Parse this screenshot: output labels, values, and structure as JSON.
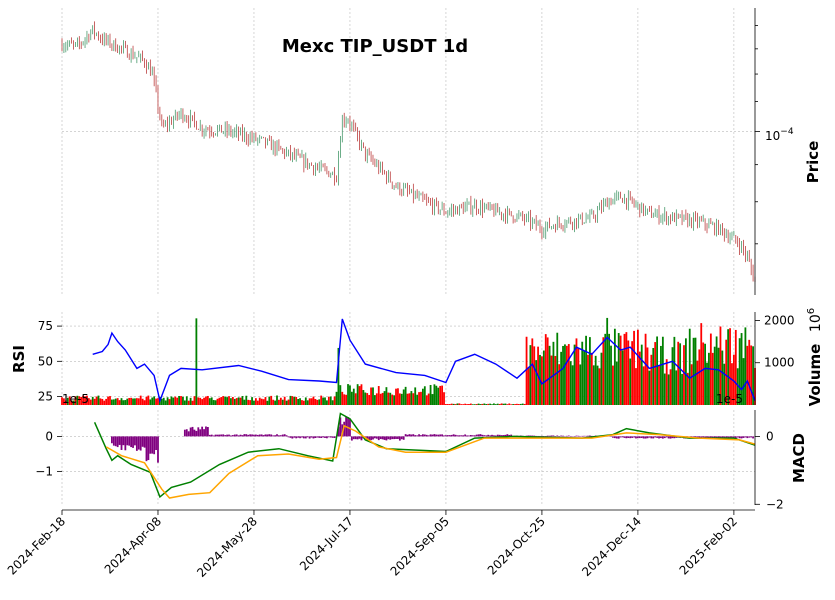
{
  "chart_data": {
    "type": "candlestick",
    "title": "Mexc TIP_USDT 1d",
    "x_tick_labels": [
      "2024-Feb-18",
      "2024-Apr-08",
      "2024-May-28",
      "2024-Jul-17",
      "2024-Sep-05",
      "2024-Oct-25",
      "2024-Dec-14",
      "2025-Feb-02"
    ],
    "x_range": [
      "2024-Feb-18",
      "2025-Feb-13"
    ],
    "colors": {
      "up": "#2e8b57",
      "down": "#b22222",
      "rsi": "#0000ff",
      "vol_up": "#008000",
      "vol_down": "#ff0000",
      "macd": "#008000",
      "signal": "#ffa500",
      "hist": "#800080"
    },
    "price_panel": {
      "ylabel": "Price",
      "scale": "log",
      "ylim": [
        5.95e-05,
        0.000148
      ],
      "tick_label": "10^-4",
      "tick_value": 0.0001,
      "close_series": [
        {
          "date": "2024-Feb-18",
          "value": 0.000132
        },
        {
          "date": "2024-Feb-26",
          "value": 0.000131
        },
        {
          "date": "2024-Mar-05",
          "value": 0.000138
        },
        {
          "date": "2024-Mar-10",
          "value": 0.000134
        },
        {
          "date": "2024-Mar-20",
          "value": 0.00013
        },
        {
          "date": "2024-Apr-01",
          "value": 0.000125
        },
        {
          "date": "2024-Apr-05",
          "value": 0.00012
        },
        {
          "date": "2024-Apr-10",
          "value": 0.000101
        },
        {
          "date": "2024-Apr-20",
          "value": 0.000106
        },
        {
          "date": "2024-May-01",
          "value": 0.000101
        },
        {
          "date": "2024-May-15",
          "value": 0.0001
        },
        {
          "date": "2024-Jun-01",
          "value": 9.7e-05
        },
        {
          "date": "2024-Jun-15",
          "value": 9.3e-05
        },
        {
          "date": "2024-Jun-30",
          "value": 8.9e-05
        },
        {
          "date": "2024-Jul-10",
          "value": 8.7e-05
        },
        {
          "date": "2024-Jul-13",
          "value": 0.000104
        },
        {
          "date": "2024-Jul-16",
          "value": 0.000104
        },
        {
          "date": "2024-Jul-25",
          "value": 9.3e-05
        },
        {
          "date": "2024-Aug-10",
          "value": 8.4e-05
        },
        {
          "date": "2024-Aug-25",
          "value": 8e-05
        },
        {
          "date": "2024-Sep-05",
          "value": 7.75e-05
        },
        {
          "date": "2024-Sep-20",
          "value": 7.9e-05
        },
        {
          "date": "2024-Oct-01",
          "value": 7.75e-05
        },
        {
          "date": "2024-Oct-15",
          "value": 7.6e-05
        },
        {
          "date": "2024-Oct-25",
          "value": 7.35e-05
        },
        {
          "date": "2024-Nov-05",
          "value": 7.5e-05
        },
        {
          "date": "2024-Nov-20",
          "value": 7.6e-05
        },
        {
          "date": "2024-Nov-28",
          "value": 8e-05
        },
        {
          "date": "2024-Dec-05",
          "value": 8.12e-05
        },
        {
          "date": "2024-Dec-10",
          "value": 8e-05
        },
        {
          "date": "2024-Dec-20",
          "value": 7.7e-05
        },
        {
          "date": "2025-Jan-01",
          "value": 7.6e-05
        },
        {
          "date": "2025-Jan-15",
          "value": 7.5e-05
        },
        {
          "date": "2025-Jan-25",
          "value": 7.35e-05
        },
        {
          "date": "2025-Feb-05",
          "value": 7e-05
        },
        {
          "date": "2025-Feb-09",
          "value": 6.7e-05
        },
        {
          "date": "2025-Feb-13",
          "value": 6.2e-05
        }
      ]
    },
    "rsi_panel": {
      "ylabel": "RSI",
      "ylim": [
        19,
        85
      ],
      "yticks": [
        25,
        50,
        75
      ],
      "series": [
        {
          "date": "2024-Mar-05",
          "value": 55
        },
        {
          "date": "2024-Mar-10",
          "value": 57
        },
        {
          "date": "2024-Mar-13",
          "value": 62
        },
        {
          "date": "2024-Mar-15",
          "value": 70
        },
        {
          "date": "2024-Mar-18",
          "value": 64
        },
        {
          "date": "2024-Mar-22",
          "value": 58
        },
        {
          "date": "2024-Mar-28",
          "value": 45
        },
        {
          "date": "2024-Apr-01",
          "value": 48
        },
        {
          "date": "2024-Apr-06",
          "value": 40
        },
        {
          "date": "2024-Apr-09",
          "value": 22
        },
        {
          "date": "2024-Apr-14",
          "value": 40
        },
        {
          "date": "2024-Apr-20",
          "value": 45
        },
        {
          "date": "2024-May-01",
          "value": 44
        },
        {
          "date": "2024-May-20",
          "value": 47
        },
        {
          "date": "2024-Jun-01",
          "value": 43
        },
        {
          "date": "2024-Jun-15",
          "value": 37
        },
        {
          "date": "2024-Jul-01",
          "value": 36
        },
        {
          "date": "2024-Jul-10",
          "value": 35
        },
        {
          "date": "2024-Jul-13",
          "value": 80
        },
        {
          "date": "2024-Jul-17",
          "value": 65
        },
        {
          "date": "2024-Jul-25",
          "value": 48
        },
        {
          "date": "2024-Aug-10",
          "value": 42
        },
        {
          "date": "2024-Aug-25",
          "value": 40
        },
        {
          "date": "2024-Sep-05",
          "value": 35
        },
        {
          "date": "2024-Sep-10",
          "value": 50
        },
        {
          "date": "2024-Sep-20",
          "value": 55
        },
        {
          "date": "2024-Oct-01",
          "value": 48
        },
        {
          "date": "2024-Oct-12",
          "value": 38
        },
        {
          "date": "2024-Oct-20",
          "value": 48
        },
        {
          "date": "2024-Oct-25",
          "value": 34
        },
        {
          "date": "2024-Nov-05",
          "value": 45
        },
        {
          "date": "2024-Nov-12",
          "value": 60
        },
        {
          "date": "2024-Nov-20",
          "value": 55
        },
        {
          "date": "2024-Nov-28",
          "value": 67
        },
        {
          "date": "2024-Dec-05",
          "value": 58
        },
        {
          "date": "2024-Dec-10",
          "value": 60
        },
        {
          "date": "2024-Dec-20",
          "value": 45
        },
        {
          "date": "2025-Jan-01",
          "value": 50
        },
        {
          "date": "2025-Jan-10",
          "value": 38
        },
        {
          "date": "2025-Jan-18",
          "value": 45
        },
        {
          "date": "2025-Jan-25",
          "value": 44
        },
        {
          "date": "2025-Feb-02",
          "value": 36
        },
        {
          "date": "2025-Feb-06",
          "value": 30
        },
        {
          "date": "2025-Feb-09",
          "value": 36
        },
        {
          "date": "2025-Feb-13",
          "value": 22
        }
      ]
    },
    "volume_panel": {
      "ylabel": "Volume",
      "multiplier_label": "10^6",
      "ylim": [
        0,
        2200
      ],
      "yticks": [
        1000,
        2000
      ],
      "levels": [
        {
          "from": "2024-Feb-18",
          "to": "2024-Jul-10",
          "value": 180
        },
        {
          "from": "2024-Jul-10",
          "to": "2024-Sep-05",
          "value": 400
        },
        {
          "from": "2024-Sep-05",
          "to": "2024-Oct-17",
          "value": 30
        },
        {
          "from": "2024-Oct-17",
          "to": "2024-Nov-28",
          "value": 1430
        },
        {
          "from": "2024-Nov-28",
          "to": "2024-Dec-20",
          "value": 1460
        },
        {
          "from": "2024-Dec-20",
          "to": "2025-Jan-10",
          "value": 1300
        },
        {
          "from": "2025-Jan-10",
          "to": "2025-Feb-13",
          "value": 1580
        }
      ],
      "spikes": [
        {
          "date": "2024-Apr-28",
          "value": 2050
        },
        {
          "date": "2024-Jul-11",
          "value": 1350
        },
        {
          "date": "2024-Nov-28",
          "value": 2060
        }
      ]
    },
    "macd_panel": {
      "ylabel": "MACD",
      "multiplier_label": "1e-5",
      "left_multiplier_label": "1e-5",
      "ylim": [
        -1.95,
        0.75
      ],
      "left_yticks": [
        -1,
        0
      ],
      "right_yticks": [
        -2,
        0
      ],
      "macd": [
        {
          "date": "2024-Mar-06",
          "value": 0.4
        },
        {
          "date": "2024-Mar-12",
          "value": -0.35
        },
        {
          "date": "2024-Mar-15",
          "value": -0.68
        },
        {
          "date": "2024-Mar-18",
          "value": -0.55
        },
        {
          "date": "2024-Mar-25",
          "value": -0.8
        },
        {
          "date": "2024-Apr-04",
          "value": -1.02
        },
        {
          "date": "2024-Apr-09",
          "value": -1.72
        },
        {
          "date": "2024-Apr-15",
          "value": -1.45
        },
        {
          "date": "2024-Apr-25",
          "value": -1.3
        },
        {
          "date": "2024-May-10",
          "value": -0.8
        },
        {
          "date": "2024-May-25",
          "value": -0.45
        },
        {
          "date": "2024-Jun-10",
          "value": -0.35
        },
        {
          "date": "2024-Jun-25",
          "value": -0.55
        },
        {
          "date": "2024-Jul-08",
          "value": -0.7
        },
        {
          "date": "2024-Jul-12",
          "value": 0.65
        },
        {
          "date": "2024-Jul-17",
          "value": 0.5
        },
        {
          "date": "2024-Jul-25",
          "value": -0.1
        },
        {
          "date": "2024-Aug-05",
          "value": -0.35
        },
        {
          "date": "2024-Aug-25",
          "value": -0.4
        },
        {
          "date": "2024-Sep-05",
          "value": -0.43
        },
        {
          "date": "2024-Sep-20",
          "value": -0.05
        },
        {
          "date": "2024-Oct-10",
          "value": 0.0
        },
        {
          "date": "2024-Oct-25",
          "value": -0.02
        },
        {
          "date": "2024-Nov-15",
          "value": -0.05
        },
        {
          "date": "2024-Dec-01",
          "value": 0.05
        },
        {
          "date": "2024-Dec-08",
          "value": 0.22
        },
        {
          "date": "2024-Dec-20",
          "value": 0.1
        },
        {
          "date": "2025-Jan-10",
          "value": -0.05
        },
        {
          "date": "2025-Feb-02",
          "value": -0.05
        },
        {
          "date": "2025-Feb-13",
          "value": -0.25
        }
      ],
      "signal": [
        {
          "date": "2024-Mar-12",
          "value": -0.3
        },
        {
          "date": "2024-Mar-20",
          "value": -0.55
        },
        {
          "date": "2024-Apr-01",
          "value": -0.75
        },
        {
          "date": "2024-Apr-10",
          "value": -1.5
        },
        {
          "date": "2024-Apr-14",
          "value": -1.75
        },
        {
          "date": "2024-Apr-24",
          "value": -1.65
        },
        {
          "date": "2024-May-05",
          "value": -1.6
        },
        {
          "date": "2024-May-15",
          "value": -1.05
        },
        {
          "date": "2024-May-30",
          "value": -0.55
        },
        {
          "date": "2024-Jun-15",
          "value": -0.5
        },
        {
          "date": "2024-Jul-01",
          "value": -0.65
        },
        {
          "date": "2024-Jul-10",
          "value": -0.6
        },
        {
          "date": "2024-Jul-14",
          "value": 0.3
        },
        {
          "date": "2024-Jul-20",
          "value": 0.15
        },
        {
          "date": "2024-Aug-01",
          "value": -0.3
        },
        {
          "date": "2024-Aug-15",
          "value": -0.45
        },
        {
          "date": "2024-Sep-05",
          "value": -0.45
        },
        {
          "date": "2024-Sep-25",
          "value": -0.05
        },
        {
          "date": "2024-Oct-25",
          "value": -0.05
        },
        {
          "date": "2024-Nov-20",
          "value": -0.05
        },
        {
          "date": "2024-Dec-08",
          "value": 0.1
        },
        {
          "date": "2024-Dec-25",
          "value": 0.05
        },
        {
          "date": "2025-Jan-15",
          "value": -0.05
        },
        {
          "date": "2025-Feb-05",
          "value": -0.1
        },
        {
          "date": "2025-Feb-13",
          "value": -0.22
        }
      ],
      "histogram": [
        {
          "from": "2024-Mar-15",
          "to": "2024-Apr-01",
          "value": -0.35
        },
        {
          "from": "2024-Apr-01",
          "to": "2024-Apr-09",
          "value": -0.6
        },
        {
          "from": "2024-Apr-22",
          "to": "2024-May-05",
          "value": 0.22
        },
        {
          "from": "2024-May-05",
          "to": "2024-Jun-15",
          "value": 0.05
        },
        {
          "from": "2024-Jun-15",
          "to": "2024-Jul-10",
          "value": -0.05
        },
        {
          "from": "2024-Jul-11",
          "to": "2024-Jul-18",
          "value": 0.45
        },
        {
          "from": "2024-Jul-18",
          "to": "2024-Aug-15",
          "value": -0.1
        },
        {
          "from": "2024-Aug-15",
          "to": "2024-Oct-10",
          "value": 0.05
        },
        {
          "from": "2024-Oct-10",
          "to": "2024-Dec-01",
          "value": 0.02
        },
        {
          "from": "2024-Dec-01",
          "to": "2025-Feb-13",
          "value": -0.05
        }
      ]
    }
  }
}
